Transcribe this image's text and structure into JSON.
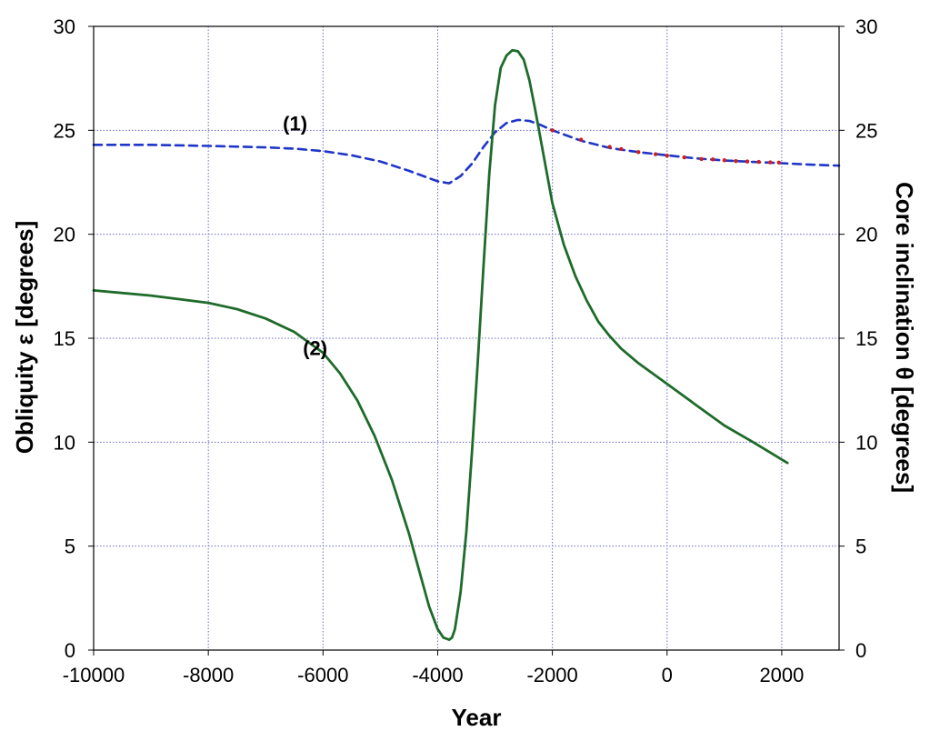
{
  "chart_data": {
    "type": "line",
    "title": "",
    "xlabel": "Year",
    "ylabel_left": "Obliquity ε [degrees]",
    "ylabel_right": "Core inclination θ [degrees]",
    "xlim": [
      -10000,
      3000
    ],
    "ylim": [
      0,
      30
    ],
    "xticks": [
      -10000,
      -8000,
      -6000,
      -4000,
      -2000,
      0,
      2000
    ],
    "yticks": [
      0,
      5,
      10,
      15,
      20,
      25,
      30
    ],
    "grid": true,
    "colors": {
      "series_1": "#1f35c8",
      "series_2": "#1e6b2a",
      "observations": "#cc1f1f",
      "grid": "#6b6bc8",
      "axes": "#000000"
    },
    "annotations": [
      {
        "text": "(1)",
        "x": -6700,
        "y": 25.3
      },
      {
        "text": "(2)",
        "x": -6350,
        "y": 14.5
      }
    ],
    "series": [
      {
        "label": "(1)",
        "axis": "left",
        "style": "dashed",
        "x": [
          -10000,
          -9000,
          -8000,
          -7000,
          -6500,
          -6000,
          -5500,
          -5000,
          -4500,
          -4200,
          -4000,
          -3800,
          -3600,
          -3400,
          -3200,
          -3000,
          -2800,
          -2600,
          -2400,
          -2200,
          -2000,
          -1800,
          -1500,
          -1000,
          -500,
          0,
          500,
          1000,
          1500,
          2000,
          2500,
          3000
        ],
        "values": [
          24.3,
          24.3,
          24.25,
          24.18,
          24.12,
          24.0,
          23.8,
          23.5,
          23.05,
          22.75,
          22.55,
          22.45,
          22.8,
          23.4,
          24.2,
          24.9,
          25.35,
          25.5,
          25.45,
          25.25,
          25.0,
          24.8,
          24.5,
          24.15,
          23.95,
          23.8,
          23.65,
          23.55,
          23.48,
          23.42,
          23.35,
          23.3
        ]
      },
      {
        "label": "(2)",
        "axis": "right",
        "style": "solid",
        "x": [
          -10000,
          -9000,
          -8000,
          -7500,
          -7000,
          -6500,
          -6000,
          -5700,
          -5400,
          -5100,
          -4800,
          -4500,
          -4300,
          -4150,
          -4000,
          -3900,
          -3800,
          -3750,
          -3700,
          -3600,
          -3500,
          -3400,
          -3300,
          -3200,
          -3100,
          -3000,
          -2900,
          -2800,
          -2700,
          -2600,
          -2500,
          -2400,
          -2300,
          -2200,
          -2000,
          -1800,
          -1600,
          -1400,
          -1200,
          -1000,
          -800,
          -500,
          0,
          500,
          1000,
          1500,
          2100
        ],
        "values": [
          17.3,
          17.05,
          16.7,
          16.4,
          15.95,
          15.3,
          14.3,
          13.3,
          12.0,
          10.3,
          8.2,
          5.6,
          3.6,
          2.1,
          1.0,
          0.6,
          0.5,
          0.6,
          1.0,
          2.8,
          5.7,
          9.6,
          13.9,
          18.5,
          22.9,
          26.2,
          28.0,
          28.6,
          28.85,
          28.8,
          28.4,
          27.4,
          26.0,
          24.5,
          21.5,
          19.5,
          18.0,
          16.8,
          15.8,
          15.1,
          14.5,
          13.8,
          12.8,
          11.8,
          10.8,
          10.0,
          9.0
        ]
      },
      {
        "label": "",
        "axis": "left",
        "style": "markers",
        "x": [
          -2000,
          -1500,
          -1000,
          -800,
          -500,
          -200,
          0,
          300,
          600,
          800,
          1000,
          1200,
          1400,
          1600,
          1800,
          1950
        ],
        "values": [
          25.0,
          24.55,
          24.2,
          24.1,
          23.95,
          23.85,
          23.78,
          23.7,
          23.62,
          23.6,
          23.56,
          23.52,
          23.5,
          23.48,
          23.46,
          23.45
        ]
      }
    ]
  }
}
